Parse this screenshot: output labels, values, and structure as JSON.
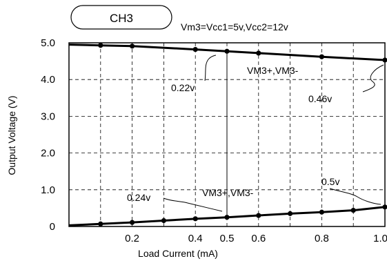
{
  "chart_data": {
    "type": "line",
    "badge": "CH3",
    "subtitle": "Vm3=Vcc1=5v,Vcc2=12v",
    "xlabel": "Load Current  (mA)",
    "ylabel": "Output Voltage (V)",
    "xlim": [
      0,
      1.0
    ],
    "ylim": [
      0,
      5.0
    ],
    "grid": true,
    "x_ticks": [
      0.2,
      0.4,
      0.5,
      0.6,
      0.8,
      1.0
    ],
    "x_tick_labels": [
      "0.2",
      "0.4",
      "0.5",
      "0.6",
      "0.8",
      "1.0"
    ],
    "y_ticks": [
      0,
      1.0,
      2.0,
      3.0,
      4.0,
      5.0
    ],
    "y_tick_labels": [
      "0",
      "1.0",
      "2.0",
      "3.0",
      "4.0",
      "5.0"
    ],
    "series": [
      {
        "name": "VM3+,VM3- (high)",
        "x": [
          0,
          0.1,
          0.2,
          0.4,
          0.5,
          0.6,
          0.8,
          1.0
        ],
        "y": [
          4.95,
          4.93,
          4.91,
          4.82,
          4.77,
          4.72,
          4.62,
          4.53
        ]
      },
      {
        "name": "VM3+,VM3- (low)",
        "x": [
          0,
          0.1,
          0.2,
          0.3,
          0.4,
          0.5,
          0.6,
          0.7,
          0.8,
          0.9,
          1.0
        ],
        "y": [
          0.03,
          0.07,
          0.11,
          0.16,
          0.21,
          0.25,
          0.3,
          0.35,
          0.39,
          0.44,
          0.53
        ]
      }
    ],
    "annotations": [
      {
        "text": "0.22v"
      },
      {
        "text": "VM3+,VM3-"
      },
      {
        "text": "0.46v"
      },
      {
        "text": "0.5v"
      },
      {
        "text": "0.24v"
      },
      {
        "text": "VM3+,VM3-"
      }
    ]
  }
}
